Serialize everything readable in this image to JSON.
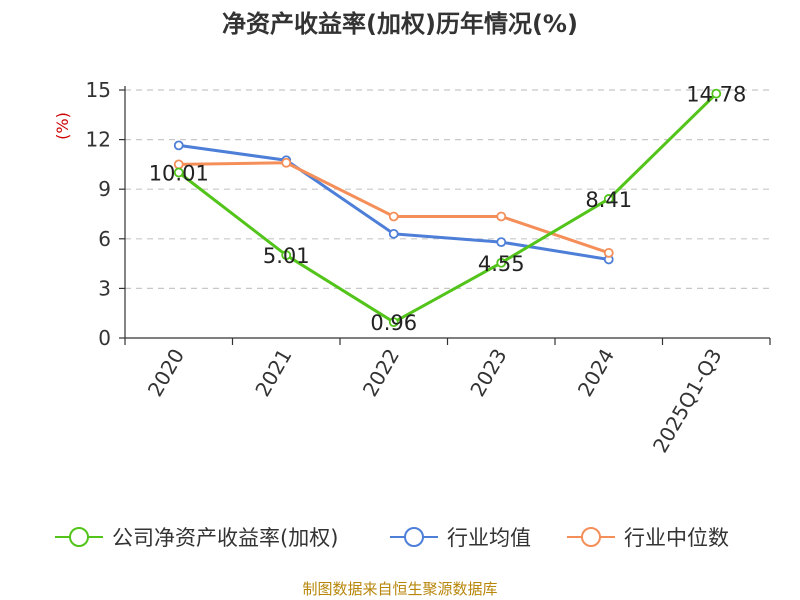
{
  "chart_data": {
    "type": "line",
    "title": "净资产收益率(加权)历年情况(%)",
    "ylabel": "(%)",
    "xlabel": "",
    "categories": [
      "2020",
      "2021",
      "2022",
      "2023",
      "2024",
      "2025Q1-Q3"
    ],
    "ylim": [
      0,
      15
    ],
    "yticks": [
      0,
      3,
      6,
      9,
      12,
      15
    ],
    "grid": true,
    "legend_position": "bottom",
    "series": [
      {
        "name": "公司净资产收益率(加权)",
        "color": "#52c41a",
        "values": [
          10.01,
          5.01,
          0.96,
          4.55,
          8.41,
          14.78
        ],
        "show_labels": true
      },
      {
        "name": "行业均值",
        "color": "#4e7fd8",
        "values": [
          11.65,
          10.75,
          6.3,
          5.8,
          4.75,
          null
        ],
        "show_labels": false
      },
      {
        "name": "行业中位数",
        "color": "#f58f5a",
        "values": [
          10.5,
          10.6,
          7.35,
          7.35,
          5.15,
          null
        ],
        "show_labels": false
      }
    ]
  },
  "source_text": "制图数据来自恒生聚源数据库"
}
